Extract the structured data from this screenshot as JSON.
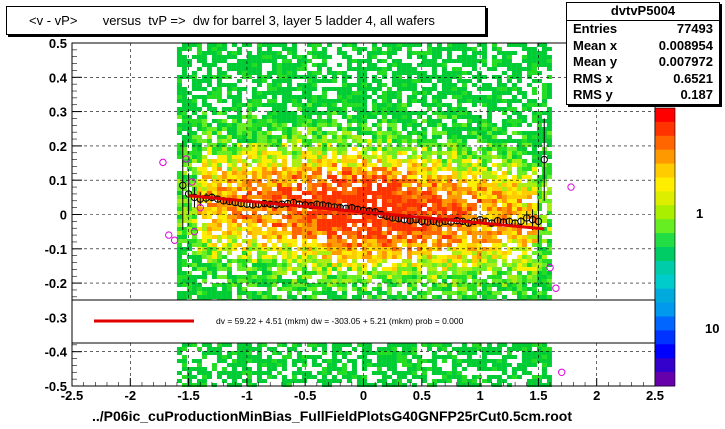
{
  "title": "<v - vP>       versus  tvP =>  dw for barrel 3, layer 5 ladder 4, all wafers",
  "footer": "../P06ic_cuProductionMinBias_FullFieldPlotsG40GNFP25rCut0.5cm.root",
  "stats": {
    "name": "dvtvP5004",
    "rows": [
      {
        "label": "Entries",
        "value": "77493"
      },
      {
        "label": "Mean x",
        "value": "0.008954"
      },
      {
        "label": "Mean y",
        "value": "0.007972"
      },
      {
        "label": "RMS x",
        "value": "0.6521"
      },
      {
        "label": "RMS y",
        "value": "0.187"
      }
    ]
  },
  "legend": {
    "text": "dv =    59.22 +   4.51 (mkm) dw = -303.05 +   5.21 (mkm) prob = 0.000",
    "line_color": "#e00000"
  },
  "palette_labels": [
    "1",
    "10"
  ],
  "chart_data": {
    "type": "scatter",
    "title": "<v - vP>       versus  tvP =>  dw for barrel 3, layer 5 ladder 4, all wafers",
    "xlabel": "../P06ic_cuProductionMinBias_FullFieldPlotsG40GNFP25rCut0.5cm.root",
    "ylabel": "",
    "xlim": [
      -2.5,
      2.5
    ],
    "ylim": [
      -0.5,
      0.5
    ],
    "x_ticks": [
      -2.5,
      -2,
      -1.5,
      -1,
      -0.5,
      0,
      0.5,
      1,
      1.5,
      2,
      2.5
    ],
    "x_tick_labels": [
      "-2.5",
      "-2",
      "-1.5",
      "-1",
      "-0.5",
      "0",
      "0.5",
      "1",
      "1.5",
      "2",
      "2.5"
    ],
    "y_ticks": [
      -0.5,
      -0.4,
      -0.3,
      -0.2,
      -0.1,
      0,
      0.1,
      0.2,
      0.3,
      0.4,
      0.5
    ],
    "y_tick_labels": [
      "-0.5",
      "-0.4",
      "-0.3",
      "-0.2",
      "-0.1",
      "0",
      "0.1",
      "0.2",
      "0.3",
      "0.4",
      "0.5"
    ],
    "grid": true,
    "histogram_extent_x": [
      -1.6,
      1.6
    ],
    "fit_line": {
      "x": [
        -1.5,
        1.55
      ],
      "y": [
        0.055,
        -0.042
      ],
      "color": "#e00000"
    },
    "profile_black": {
      "x": [
        -1.55,
        -1.5,
        -1.45,
        -1.4,
        -1.35,
        -1.3,
        -1.25,
        -1.2,
        -1.15,
        -1.1,
        -1.05,
        -1.0,
        -0.95,
        -0.9,
        -0.85,
        -0.8,
        -0.75,
        -0.7,
        -0.65,
        -0.6,
        -0.55,
        -0.5,
        -0.45,
        -0.4,
        -0.35,
        -0.3,
        -0.25,
        -0.2,
        -0.15,
        -0.1,
        -0.05,
        0.0,
        0.05,
        0.1,
        0.15,
        0.2,
        0.25,
        0.3,
        0.35,
        0.4,
        0.45,
        0.5,
        0.55,
        0.6,
        0.65,
        0.7,
        0.75,
        0.8,
        0.85,
        0.9,
        0.95,
        1.0,
        1.05,
        1.1,
        1.15,
        1.2,
        1.25,
        1.3,
        1.35,
        1.4,
        1.45,
        1.5,
        1.55
      ],
      "y": [
        0.085,
        0.06,
        0.05,
        0.045,
        0.048,
        0.05,
        0.045,
        0.04,
        0.038,
        0.035,
        0.032,
        0.03,
        0.028,
        0.03,
        0.032,
        0.03,
        0.028,
        0.03,
        0.032,
        0.035,
        0.03,
        0.028,
        0.026,
        0.03,
        0.028,
        0.025,
        0.022,
        0.02,
        0.018,
        0.02,
        0.015,
        0.012,
        0.01,
        0.008,
        0.0,
        -0.005,
        -0.01,
        -0.012,
        -0.015,
        -0.018,
        -0.015,
        -0.02,
        -0.022,
        -0.02,
        -0.025,
        -0.02,
        -0.022,
        -0.018,
        -0.02,
        -0.025,
        -0.02,
        -0.015,
        -0.02,
        -0.025,
        -0.018,
        -0.022,
        -0.02,
        -0.025,
        -0.02,
        -0.01,
        -0.015,
        -0.02,
        0.16
      ],
      "err": [
        0.13,
        0.06,
        0.03,
        0.02,
        0.015,
        0.012,
        0.01,
        0.01,
        0.008,
        0.008,
        0.008,
        0.008,
        0.008,
        0.008,
        0.008,
        0.008,
        0.008,
        0.008,
        0.008,
        0.008,
        0.008,
        0.008,
        0.008,
        0.008,
        0.008,
        0.008,
        0.008,
        0.008,
        0.008,
        0.008,
        0.008,
        0.008,
        0.008,
        0.008,
        0.008,
        0.008,
        0.008,
        0.008,
        0.008,
        0.008,
        0.008,
        0.008,
        0.008,
        0.008,
        0.008,
        0.008,
        0.008,
        0.008,
        0.008,
        0.008,
        0.008,
        0.008,
        0.008,
        0.008,
        0.008,
        0.008,
        0.008,
        0.01,
        0.012,
        0.02,
        0.03,
        0.06,
        0.12
      ]
    },
    "profile_magenta": {
      "x": [
        -1.72,
        -1.67,
        -1.62,
        -1.52,
        -1.47,
        -1.45,
        -1.4,
        1.6,
        1.65,
        1.7,
        1.78
      ],
      "y": [
        0.152,
        -0.06,
        -0.075,
        0.162,
        0.095,
        -0.05,
        0.02,
        -0.155,
        -0.215,
        -0.46,
        0.08
      ]
    }
  }
}
